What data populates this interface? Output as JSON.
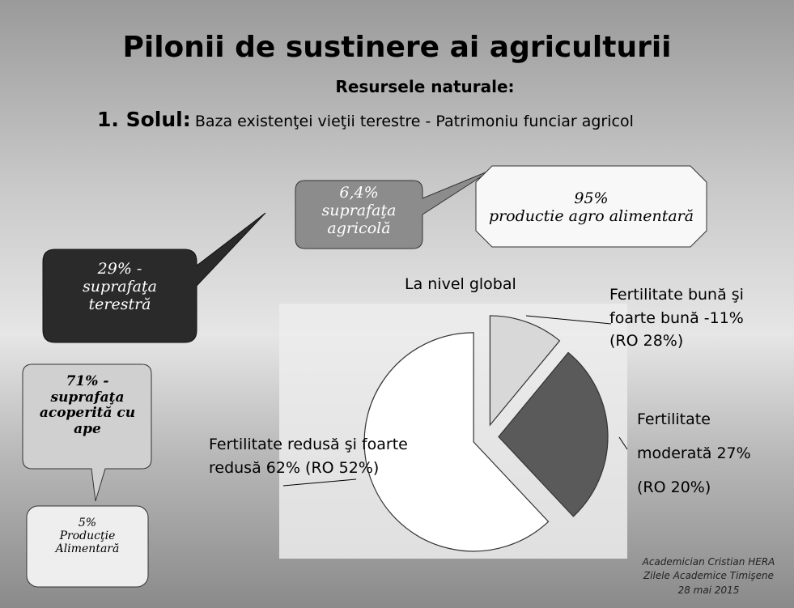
{
  "slide": {
    "title": "Pilonii de sustinere ai agriculturii",
    "subtitle": "Resursele naturale:",
    "heading_label": "1. Solul:",
    "heading_text": "Baza existenţei vieţii terestre - Patrimoniu funciar agricol",
    "callouts": [
      [
        "6,4%",
        "suprafaţa",
        "agricolă"
      ],
      [
        "95%",
        "productie agro alimentară"
      ],
      [
        "29% -",
        "suprafaţa",
        "terestră"
      ],
      [
        "71% -",
        "suprafaţa",
        "acoperită cu",
        "ape"
      ],
      [
        "5%",
        "Producţie",
        "Alimentară"
      ]
    ],
    "footer": [
      "Academician Cristian HERA",
      "Zilele Academice Timişene",
      "28 mai 2015"
    ]
  },
  "chart_data": {
    "type": "pie",
    "title": "La nivel global",
    "categories": [
      "Fertilitate bună şi foarte bună -11% (RO 28%)",
      "Fertilitate moderată 27% (RO 20%)",
      "Fertilitate redusă şi foarte redusă 62% (RO 52%)"
    ],
    "values": [
      11,
      27,
      62
    ],
    "colors": [
      "#d8d8d8",
      "#5a5a5a",
      "#ffffff"
    ]
  }
}
